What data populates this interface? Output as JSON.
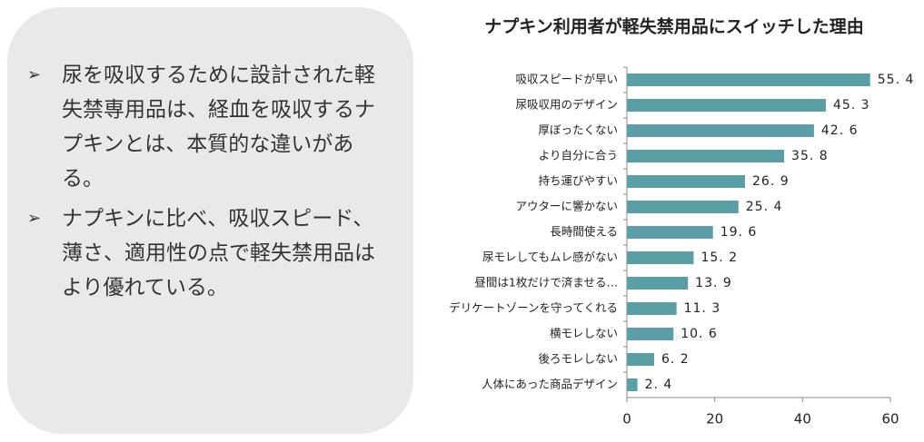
{
  "panel": {
    "bullets": [
      "尿を吸収するために設計された軽失禁専用品は、経血を吸収するナプキンとは、本質的な違いがある。",
      "ナプキンに比べ、吸収スピード、薄さ、適用性の点で軽失禁用品はより優れている。"
    ]
  },
  "chart_data": {
    "type": "hbar",
    "title": "ナプキン利用者が軽失禁用品にスイッチした理由",
    "categories": [
      "吸収スピードが早い",
      "尿吸収用のデザイン",
      "厚ぼったくない",
      "より自分に合う",
      "持ち運びやすい",
      "アウターに響かない",
      "長時間使える",
      "尿モレしてもムレ感がない",
      "昼間は1枚だけで済ませる…",
      "デリケートゾーンを守ってくれる",
      "横モレしない",
      "後ろモレしない",
      "人体にあった商品デザイン"
    ],
    "values": [
      55.4,
      45.3,
      42.6,
      35.8,
      26.9,
      25.4,
      19.6,
      15.2,
      13.9,
      11.3,
      10.6,
      6.2,
      2.4
    ],
    "value_labels": [
      "55. 4",
      "45. 3",
      "42. 6",
      "35. 8",
      "26. 9",
      "25. 4",
      "19. 6",
      "15. 2",
      "13. 9",
      "11. 3",
      "10. 6",
      "6. 2",
      "2. 4"
    ],
    "color": "#5a9ea6",
    "xlim": [
      0,
      60
    ],
    "xticks": [
      0,
      20,
      40,
      60
    ],
    "grid": false
  }
}
